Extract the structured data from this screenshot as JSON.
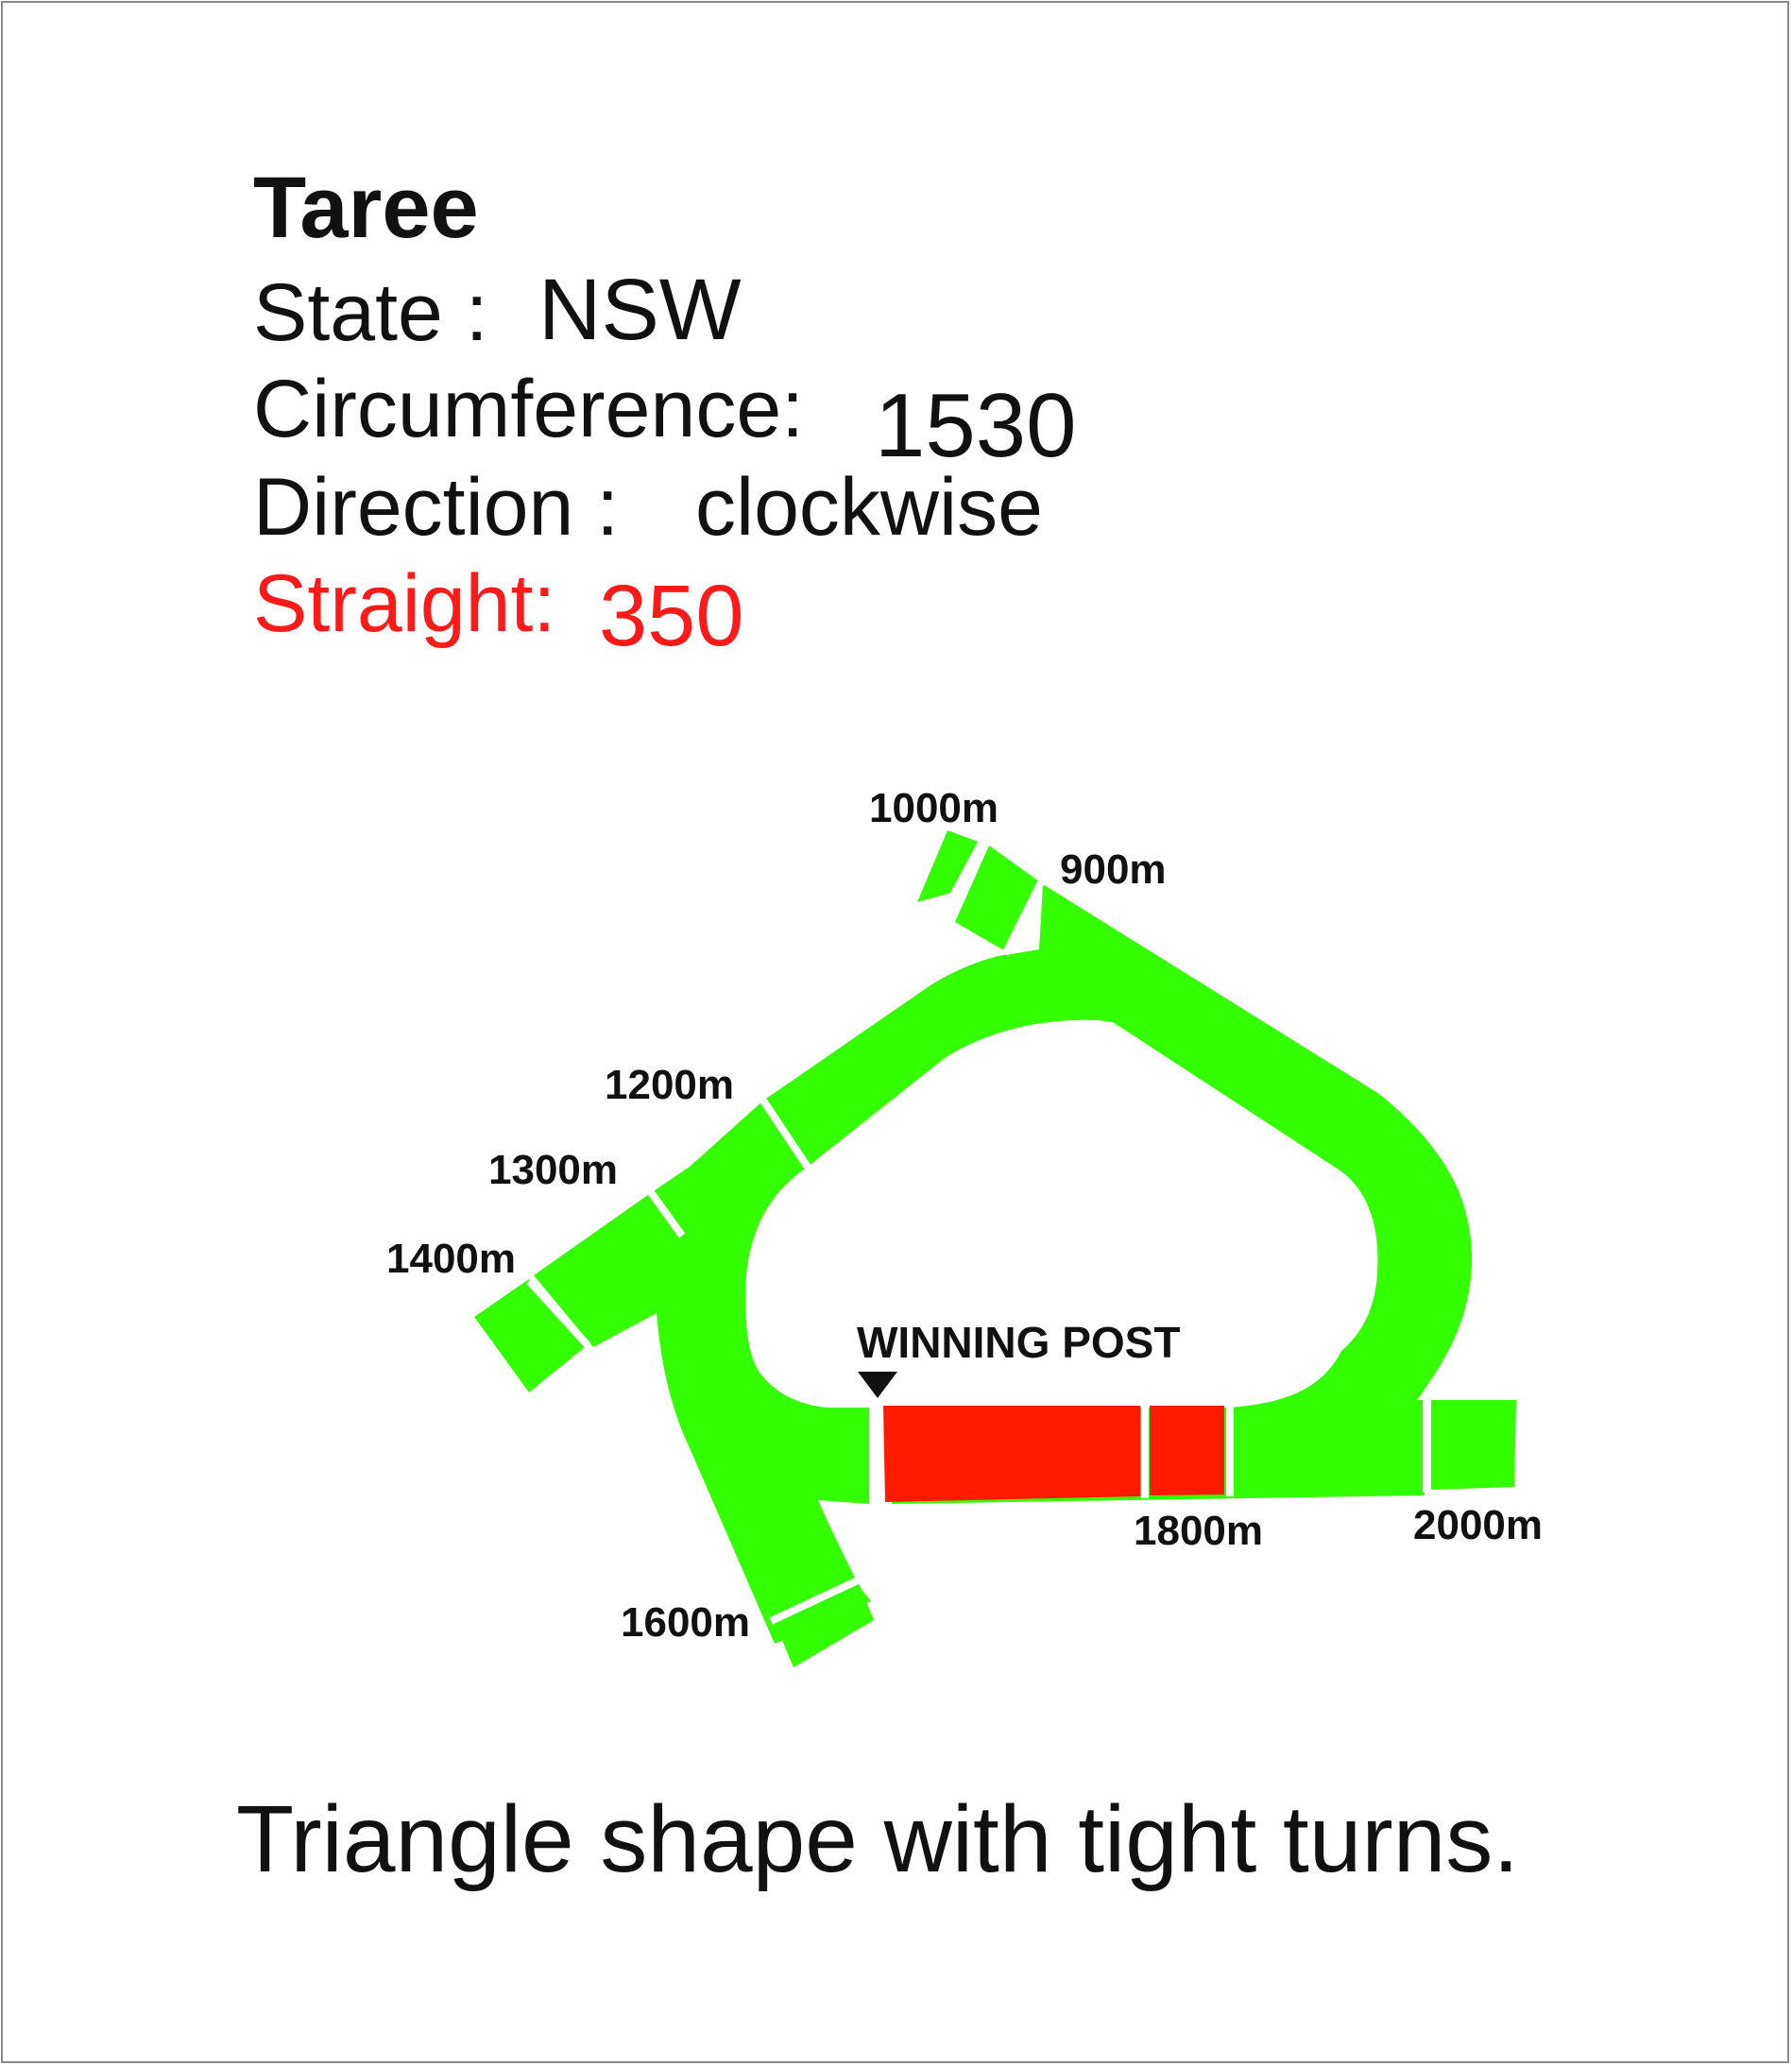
{
  "course": {
    "name": "Taree",
    "state_label": "State :",
    "state": "NSW",
    "circumference_label": "Circumference:",
    "circumference": "1530",
    "direction_label": "Direction :",
    "direction": "clockwise",
    "straight_label": "Straight:",
    "straight": "350"
  },
  "track": {
    "track_color": "#33ff00",
    "straight_color": "#ff1a00",
    "winning_post_label": "WINNING POST",
    "distance_markers": [
      "1000m",
      "900m",
      "1200m",
      "1300m",
      "1400m",
      "1600m",
      "1800m",
      "2000m"
    ]
  },
  "description": "Triangle shape with tight turns."
}
